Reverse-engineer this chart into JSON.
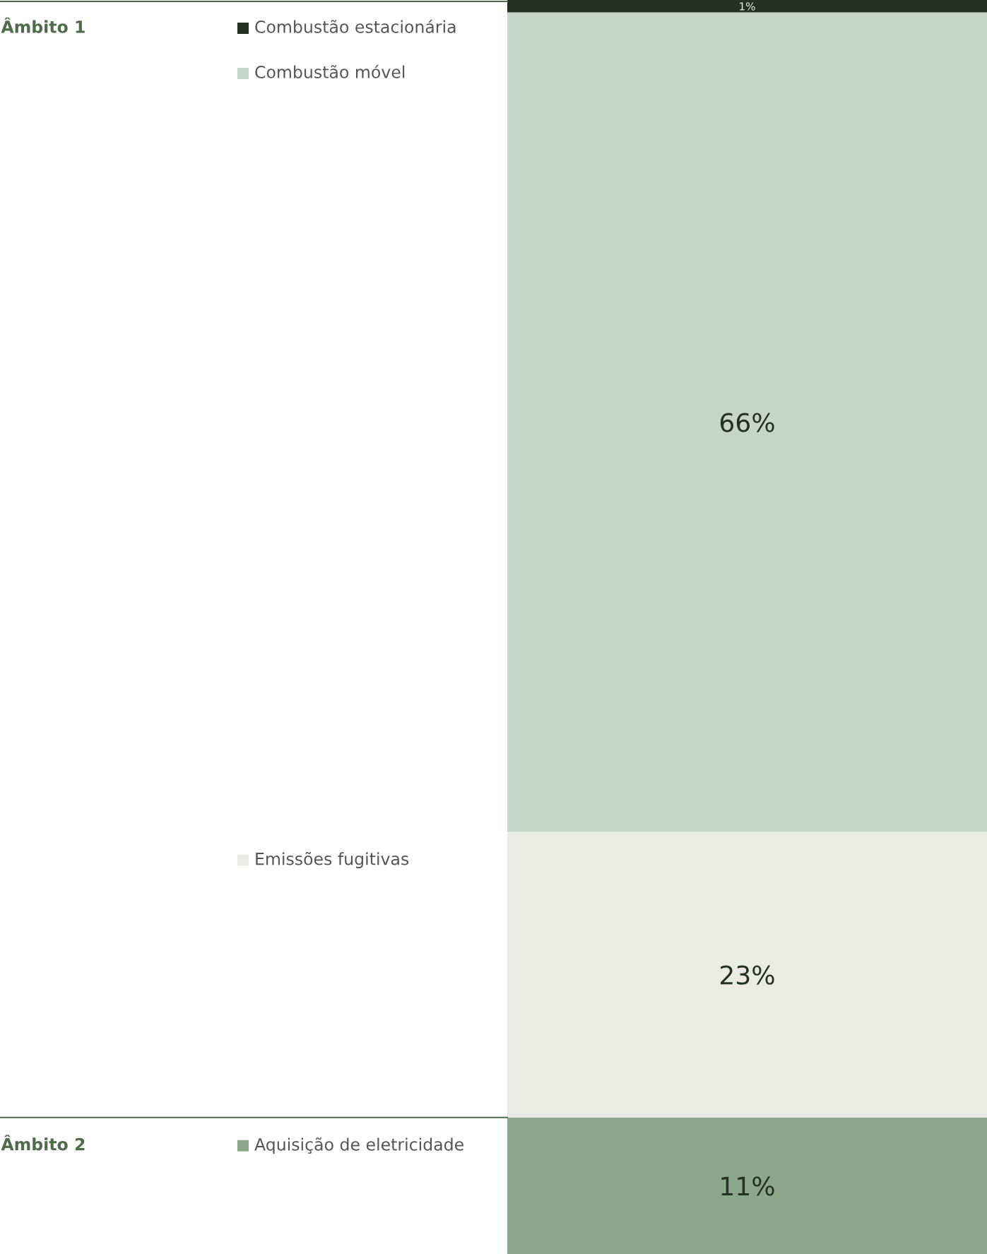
{
  "chart_data": {
    "type": "bar",
    "stacked": true,
    "legend": "left",
    "categories": [
      null
    ],
    "ylim": [
      0,
      101
    ],
    "series": [
      {
        "name": "Aquisição de eletricidade",
        "color": "#8ba98a",
        "values": [
          11
        ],
        "value_labels": [
          "11%"
        ]
      },
      {
        "name": "Emissões fugitivas",
        "color": "#ebebe6",
        "values": [
          23
        ],
        "value_labels": [
          "23%"
        ]
      },
      {
        "name": "Combustão móvel",
        "color": "#c6d6c8",
        "values": [
          66
        ],
        "value_labels": [
          "66%"
        ]
      },
      {
        "name": "Combustão estacionária",
        "color": "#233022",
        "values": [
          1
        ],
        "value_labels": [
          "1%"
        ]
      }
    ],
    "ref_lines": [
      {
        "axis": "y",
        "value": 101,
        "label": "Âmbito 1",
        "color": "#4f6b4c"
      },
      {
        "axis": "y",
        "value": 11,
        "label": "Âmbito 2",
        "color": "#4f6b4c"
      }
    ]
  }
}
